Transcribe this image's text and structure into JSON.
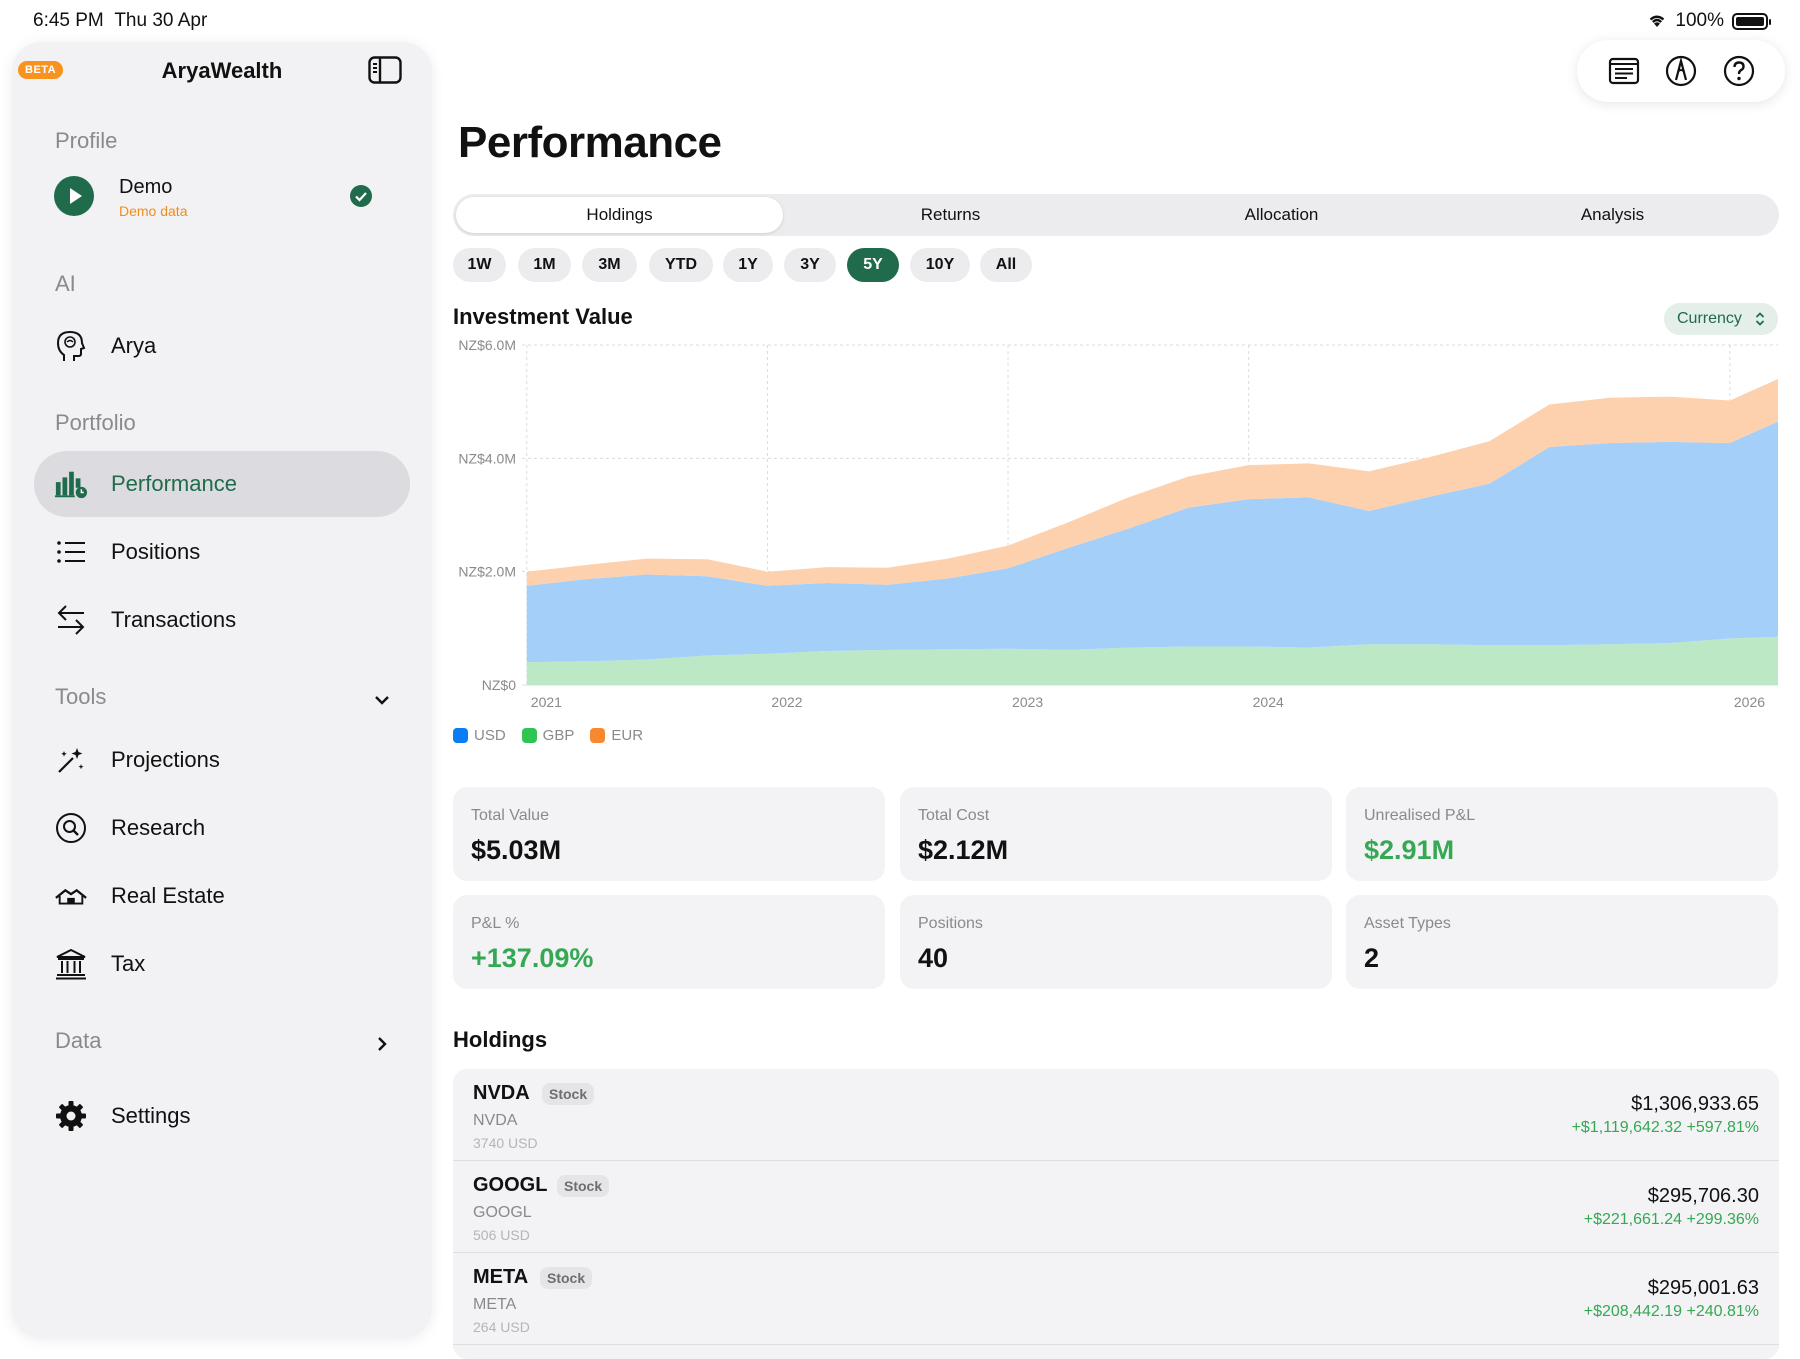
{
  "status": {
    "time": "6:45 PM",
    "date": "Thu 30 Apr",
    "battery": "100%"
  },
  "app": {
    "badge": "BETA",
    "title": "AryaWealth"
  },
  "sidebar": {
    "profile_label": "Profile",
    "profile": {
      "name": "Demo",
      "sub": "Demo data"
    },
    "ai_label": "AI",
    "ai_items": [
      {
        "label": "Arya",
        "icon": "brain-head-icon"
      }
    ],
    "portfolio_label": "Portfolio",
    "portfolio_items": [
      {
        "label": "Performance",
        "icon": "chart-bars-icon",
        "active": true
      },
      {
        "label": "Positions",
        "icon": "list-icon"
      },
      {
        "label": "Transactions",
        "icon": "arrows-swap-icon"
      }
    ],
    "tools_label": "Tools",
    "tools_items": [
      {
        "label": "Projections",
        "icon": "magic-wand-icon"
      },
      {
        "label": "Research",
        "icon": "magnifier-icon"
      },
      {
        "label": "Real Estate",
        "icon": "house-icon"
      },
      {
        "label": "Tax",
        "icon": "bank-icon"
      }
    ],
    "data_label": "Data",
    "settings_label": "Settings"
  },
  "main": {
    "title": "Performance",
    "tabs": [
      "Holdings",
      "Returns",
      "Allocation",
      "Analysis"
    ],
    "selected_tab": "Holdings",
    "ranges": [
      "1W",
      "1M",
      "3M",
      "YTD",
      "1Y",
      "3Y",
      "5Y",
      "10Y",
      "All"
    ],
    "selected_range": "5Y",
    "chart_title": "Investment Value",
    "currency_button": "Currency",
    "cards": [
      {
        "label": "Total Value",
        "value": "$5.03M",
        "green": false
      },
      {
        "label": "Total Cost",
        "value": "$2.12M",
        "green": false
      },
      {
        "label": "Unrealised P&L",
        "value": "$2.91M",
        "green": true
      },
      {
        "label": "P&L %",
        "value": "+137.09%",
        "green": true
      },
      {
        "label": "Positions",
        "value": "40",
        "green": false
      },
      {
        "label": "Asset Types",
        "value": "2",
        "green": false
      }
    ],
    "holdings_title": "Holdings",
    "holdings": [
      {
        "ticker": "NVDA",
        "type": "Stock",
        "name": "NVDA",
        "qty": "3740 USD",
        "value": "$1,306,933.65",
        "change": "+$1,119,642.32 +597.81%"
      },
      {
        "ticker": "GOOGL",
        "type": "Stock",
        "name": "GOOGL",
        "qty": "506 USD",
        "value": "$295,706.30",
        "change": "+$221,661.24 +299.36%"
      },
      {
        "ticker": "META",
        "type": "Stock",
        "name": "META",
        "qty": "264 USD",
        "value": "$295,001.63",
        "change": "+$208,442.19 +240.81%"
      }
    ]
  },
  "colors": {
    "accent": "#1f6b4c",
    "usd": "#a4cff9",
    "gbp": "#bce8c5",
    "eur": "#fdd1ad",
    "gain": "#34a853",
    "legend_usd": "#0a7cf5",
    "legend_gbp": "#30c552",
    "legend_eur": "#f7882f"
  },
  "chart_data": {
    "type": "area",
    "stacked": true,
    "title": "Investment Value",
    "x": [
      2021.0,
      2021.25,
      2021.5,
      2021.75,
      2022.0,
      2022.25,
      2022.5,
      2022.75,
      2023.0,
      2023.25,
      2023.5,
      2023.75,
      2024.0,
      2024.25,
      2024.5,
      2024.75,
      2025.0,
      2025.25,
      2025.5,
      2025.75,
      2026.0,
      2026.2
    ],
    "x_ticks": [
      "2021",
      "2022",
      "2023",
      "2024",
      "2026"
    ],
    "x_tick_values": [
      2021,
      2022,
      2023,
      2024,
      2026
    ],
    "y_ticks": [
      "NZ$0",
      "NZ$2.0M",
      "NZ$4.0M",
      "NZ$6.0M"
    ],
    "y_tick_values": [
      0,
      2,
      4,
      6
    ],
    "ylim": [
      0,
      6
    ],
    "y_unit": "NZ$ millions",
    "grid": true,
    "legend": "bottom-left",
    "series": [
      {
        "name": "GBP",
        "values": [
          0.4,
          0.42,
          0.45,
          0.52,
          0.55,
          0.6,
          0.62,
          0.63,
          0.64,
          0.62,
          0.66,
          0.68,
          0.68,
          0.66,
          0.72,
          0.72,
          0.7,
          0.7,
          0.72,
          0.74,
          0.82,
          0.85
        ]
      },
      {
        "name": "USD",
        "values": [
          1.35,
          1.45,
          1.5,
          1.4,
          1.2,
          1.2,
          1.15,
          1.25,
          1.42,
          1.8,
          2.1,
          2.45,
          2.6,
          2.65,
          2.35,
          2.6,
          2.85,
          3.5,
          3.55,
          3.55,
          3.45,
          3.8
        ]
      },
      {
        "name": "EUR",
        "values": [
          0.25,
          0.25,
          0.28,
          0.3,
          0.25,
          0.28,
          0.3,
          0.35,
          0.4,
          0.45,
          0.55,
          0.55,
          0.6,
          0.6,
          0.7,
          0.7,
          0.75,
          0.75,
          0.8,
          0.8,
          0.75,
          0.75
        ]
      }
    ]
  }
}
